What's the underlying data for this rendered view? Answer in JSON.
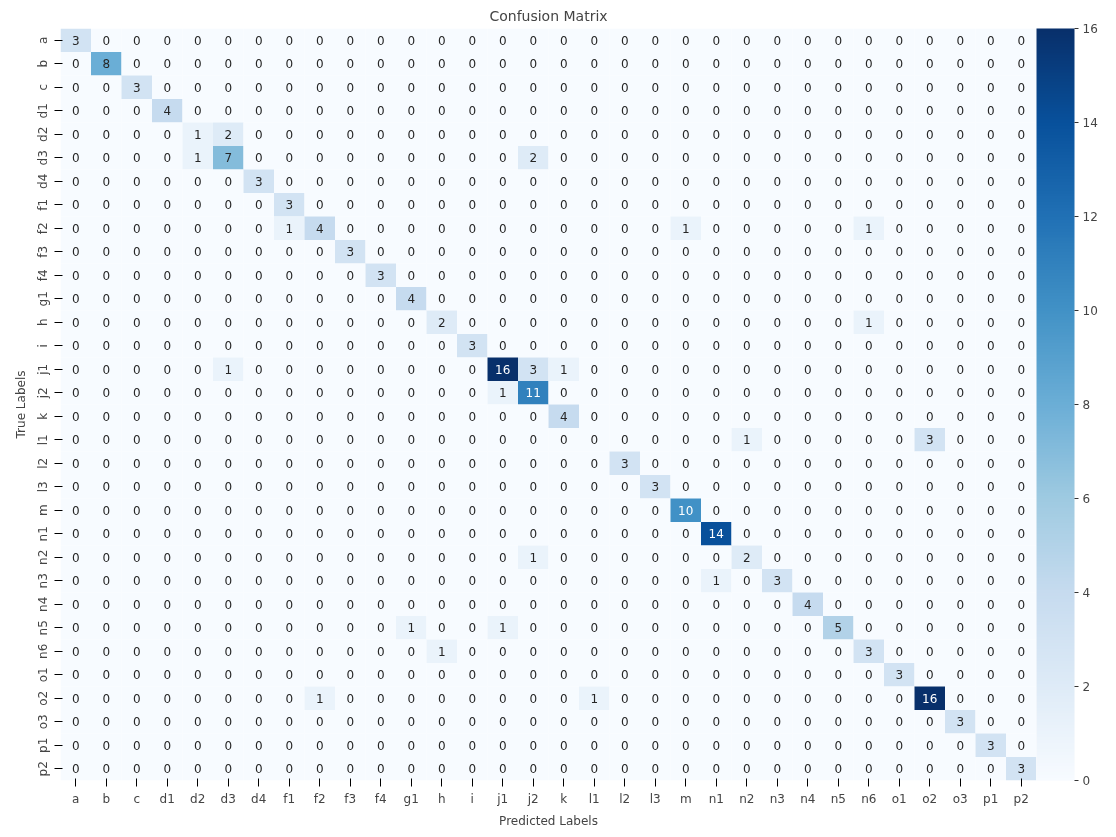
{
  "chart_data": {
    "type": "heatmap",
    "title": "Confusion Matrix",
    "xlabel": "Predicted Labels",
    "ylabel": "True Labels",
    "categories": [
      "a",
      "b",
      "c",
      "d1",
      "d2",
      "d3",
      "d4",
      "f1",
      "f2",
      "f3",
      "f4",
      "g1",
      "h",
      "i",
      "j1",
      "j2",
      "k",
      "l1",
      "l2",
      "l3",
      "m",
      "n1",
      "n2",
      "n3",
      "n4",
      "n5",
      "n6",
      "o1",
      "o2",
      "o3",
      "p1",
      "p2"
    ],
    "y_categories": [
      "a",
      "b",
      "c",
      "d1",
      "d2",
      "d3",
      "d4",
      "f1",
      "f2",
      "f3",
      "f4",
      "g1",
      "h",
      "i",
      "j1",
      "j2",
      "k",
      "l1",
      "l2",
      "l3",
      "m",
      "n1",
      "n2",
      "n3",
      "n4",
      "n5",
      "n6",
      "o1",
      "o2",
      "o3",
      "p1",
      "p2"
    ],
    "cells": [
      [
        3,
        0,
        0,
        0,
        0,
        0,
        0,
        0,
        0,
        0,
        0,
        0,
        0,
        0,
        0,
        0,
        0,
        0,
        0,
        0,
        0,
        0,
        0,
        0,
        0,
        0,
        0,
        0,
        0,
        0,
        0,
        0
      ],
      [
        0,
        8,
        0,
        0,
        0,
        0,
        0,
        0,
        0,
        0,
        0,
        0,
        0,
        0,
        0,
        0,
        0,
        0,
        0,
        0,
        0,
        0,
        0,
        0,
        0,
        0,
        0,
        0,
        0,
        0,
        0,
        0
      ],
      [
        0,
        0,
        3,
        0,
        0,
        0,
        0,
        0,
        0,
        0,
        0,
        0,
        0,
        0,
        0,
        0,
        0,
        0,
        0,
        0,
        0,
        0,
        0,
        0,
        0,
        0,
        0,
        0,
        0,
        0,
        0,
        0
      ],
      [
        0,
        0,
        0,
        4,
        0,
        0,
        0,
        0,
        0,
        0,
        0,
        0,
        0,
        0,
        0,
        0,
        0,
        0,
        0,
        0,
        0,
        0,
        0,
        0,
        0,
        0,
        0,
        0,
        0,
        0,
        0,
        0
      ],
      [
        0,
        0,
        0,
        0,
        1,
        2,
        0,
        0,
        0,
        0,
        0,
        0,
        0,
        0,
        0,
        0,
        0,
        0,
        0,
        0,
        0,
        0,
        0,
        0,
        0,
        0,
        0,
        0,
        0,
        0,
        0,
        0
      ],
      [
        0,
        0,
        0,
        0,
        1,
        7,
        0,
        0,
        0,
        0,
        0,
        0,
        0,
        0,
        0,
        2,
        0,
        0,
        0,
        0,
        0,
        0,
        0,
        0,
        0,
        0,
        0,
        0,
        0,
        0,
        0,
        0
      ],
      [
        0,
        0,
        0,
        0,
        0,
        0,
        3,
        0,
        0,
        0,
        0,
        0,
        0,
        0,
        0,
        0,
        0,
        0,
        0,
        0,
        0,
        0,
        0,
        0,
        0,
        0,
        0,
        0,
        0,
        0,
        0,
        0
      ],
      [
        0,
        0,
        0,
        0,
        0,
        0,
        0,
        3,
        0,
        0,
        0,
        0,
        0,
        0,
        0,
        0,
        0,
        0,
        0,
        0,
        0,
        0,
        0,
        0,
        0,
        0,
        0,
        0,
        0,
        0,
        0,
        0
      ],
      [
        0,
        0,
        0,
        0,
        0,
        0,
        0,
        1,
        4,
        0,
        0,
        0,
        0,
        0,
        0,
        0,
        0,
        0,
        0,
        0,
        1,
        0,
        0,
        0,
        0,
        0,
        1,
        0,
        0,
        0,
        0,
        0
      ],
      [
        0,
        0,
        0,
        0,
        0,
        0,
        0,
        0,
        0,
        3,
        0,
        0,
        0,
        0,
        0,
        0,
        0,
        0,
        0,
        0,
        0,
        0,
        0,
        0,
        0,
        0,
        0,
        0,
        0,
        0,
        0,
        0
      ],
      [
        0,
        0,
        0,
        0,
        0,
        0,
        0,
        0,
        0,
        0,
        3,
        0,
        0,
        0,
        0,
        0,
        0,
        0,
        0,
        0,
        0,
        0,
        0,
        0,
        0,
        0,
        0,
        0,
        0,
        0,
        0,
        0
      ],
      [
        0,
        0,
        0,
        0,
        0,
        0,
        0,
        0,
        0,
        0,
        0,
        4,
        0,
        0,
        0,
        0,
        0,
        0,
        0,
        0,
        0,
        0,
        0,
        0,
        0,
        0,
        0,
        0,
        0,
        0,
        0,
        0
      ],
      [
        0,
        0,
        0,
        0,
        0,
        0,
        0,
        0,
        0,
        0,
        0,
        0,
        2,
        0,
        0,
        0,
        0,
        0,
        0,
        0,
        0,
        0,
        0,
        0,
        0,
        0,
        1,
        0,
        0,
        0,
        0,
        0
      ],
      [
        0,
        0,
        0,
        0,
        0,
        0,
        0,
        0,
        0,
        0,
        0,
        0,
        0,
        3,
        0,
        0,
        0,
        0,
        0,
        0,
        0,
        0,
        0,
        0,
        0,
        0,
        0,
        0,
        0,
        0,
        0,
        0
      ],
      [
        0,
        0,
        0,
        0,
        0,
        1,
        0,
        0,
        0,
        0,
        0,
        0,
        0,
        0,
        16,
        3,
        1,
        0,
        0,
        0,
        0,
        0,
        0,
        0,
        0,
        0,
        0,
        0,
        0,
        0,
        0,
        0
      ],
      [
        0,
        0,
        0,
        0,
        0,
        0,
        0,
        0,
        0,
        0,
        0,
        0,
        0,
        0,
        1,
        11,
        0,
        0,
        0,
        0,
        0,
        0,
        0,
        0,
        0,
        0,
        0,
        0,
        0,
        0,
        0,
        0
      ],
      [
        0,
        0,
        0,
        0,
        0,
        0,
        0,
        0,
        0,
        0,
        0,
        0,
        0,
        0,
        0,
        0,
        4,
        0,
        0,
        0,
        0,
        0,
        0,
        0,
        0,
        0,
        0,
        0,
        0,
        0,
        0,
        0
      ],
      [
        0,
        0,
        0,
        0,
        0,
        0,
        0,
        0,
        0,
        0,
        0,
        0,
        0,
        0,
        0,
        0,
        0,
        0,
        0,
        0,
        0,
        0,
        1,
        0,
        0,
        0,
        0,
        0,
        3,
        0,
        0,
        0
      ],
      [
        0,
        0,
        0,
        0,
        0,
        0,
        0,
        0,
        0,
        0,
        0,
        0,
        0,
        0,
        0,
        0,
        0,
        0,
        3,
        0,
        0,
        0,
        0,
        0,
        0,
        0,
        0,
        0,
        0,
        0,
        0,
        0
      ],
      [
        0,
        0,
        0,
        0,
        0,
        0,
        0,
        0,
        0,
        0,
        0,
        0,
        0,
        0,
        0,
        0,
        0,
        0,
        0,
        3,
        0,
        0,
        0,
        0,
        0,
        0,
        0,
        0,
        0,
        0,
        0,
        0
      ],
      [
        0,
        0,
        0,
        0,
        0,
        0,
        0,
        0,
        0,
        0,
        0,
        0,
        0,
        0,
        0,
        0,
        0,
        0,
        0,
        0,
        10,
        0,
        0,
        0,
        0,
        0,
        0,
        0,
        0,
        0,
        0,
        0
      ],
      [
        0,
        0,
        0,
        0,
        0,
        0,
        0,
        0,
        0,
        0,
        0,
        0,
        0,
        0,
        0,
        0,
        0,
        0,
        0,
        0,
        0,
        14,
        0,
        0,
        0,
        0,
        0,
        0,
        0,
        0,
        0,
        0
      ],
      [
        0,
        0,
        0,
        0,
        0,
        0,
        0,
        0,
        0,
        0,
        0,
        0,
        0,
        0,
        0,
        1,
        0,
        0,
        0,
        0,
        0,
        0,
        2,
        0,
        0,
        0,
        0,
        0,
        0,
        0,
        0,
        0
      ],
      [
        0,
        0,
        0,
        0,
        0,
        0,
        0,
        0,
        0,
        0,
        0,
        0,
        0,
        0,
        0,
        0,
        0,
        0,
        0,
        0,
        0,
        1,
        0,
        3,
        0,
        0,
        0,
        0,
        0,
        0,
        0,
        0
      ],
      [
        0,
        0,
        0,
        0,
        0,
        0,
        0,
        0,
        0,
        0,
        0,
        0,
        0,
        0,
        0,
        0,
        0,
        0,
        0,
        0,
        0,
        0,
        0,
        0,
        4,
        0,
        0,
        0,
        0,
        0,
        0,
        0
      ],
      [
        0,
        0,
        0,
        0,
        0,
        0,
        0,
        0,
        0,
        0,
        0,
        1,
        0,
        0,
        1,
        0,
        0,
        0,
        0,
        0,
        0,
        0,
        0,
        0,
        0,
        5,
        0,
        0,
        0,
        0,
        0,
        0
      ],
      [
        0,
        0,
        0,
        0,
        0,
        0,
        0,
        0,
        0,
        0,
        0,
        0,
        1,
        0,
        0,
        0,
        0,
        0,
        0,
        0,
        0,
        0,
        0,
        0,
        0,
        0,
        3,
        0,
        0,
        0,
        0,
        0
      ],
      [
        0,
        0,
        0,
        0,
        0,
        0,
        0,
        0,
        0,
        0,
        0,
        0,
        0,
        0,
        0,
        0,
        0,
        0,
        0,
        0,
        0,
        0,
        0,
        0,
        0,
        0,
        0,
        3,
        0,
        0,
        0,
        0
      ],
      [
        0,
        0,
        0,
        0,
        0,
        0,
        0,
        0,
        1,
        0,
        0,
        0,
        0,
        0,
        0,
        0,
        0,
        1,
        0,
        0,
        0,
        0,
        0,
        0,
        0,
        0,
        0,
        0,
        16,
        0,
        0,
        0
      ],
      [
        0,
        0,
        0,
        0,
        0,
        0,
        0,
        0,
        0,
        0,
        0,
        0,
        0,
        0,
        0,
        0,
        0,
        0,
        0,
        0,
        0,
        0,
        0,
        0,
        0,
        0,
        0,
        0,
        0,
        3,
        0,
        0
      ],
      [
        0,
        0,
        0,
        0,
        0,
        0,
        0,
        0,
        0,
        0,
        0,
        0,
        0,
        0,
        0,
        0,
        0,
        0,
        0,
        0,
        0,
        0,
        0,
        0,
        0,
        0,
        0,
        0,
        0,
        0,
        3,
        0
      ],
      [
        0,
        0,
        0,
        0,
        0,
        0,
        0,
        0,
        0,
        0,
        0,
        0,
        0,
        0,
        0,
        0,
        0,
        0,
        0,
        0,
        0,
        0,
        0,
        0,
        0,
        0,
        0,
        0,
        0,
        0,
        0,
        3
      ]
    ],
    "clim": [
      0,
      16
    ],
    "cticks": [
      0,
      2,
      4,
      6,
      8,
      10,
      12,
      14,
      16
    ],
    "data_labels": true
  }
}
